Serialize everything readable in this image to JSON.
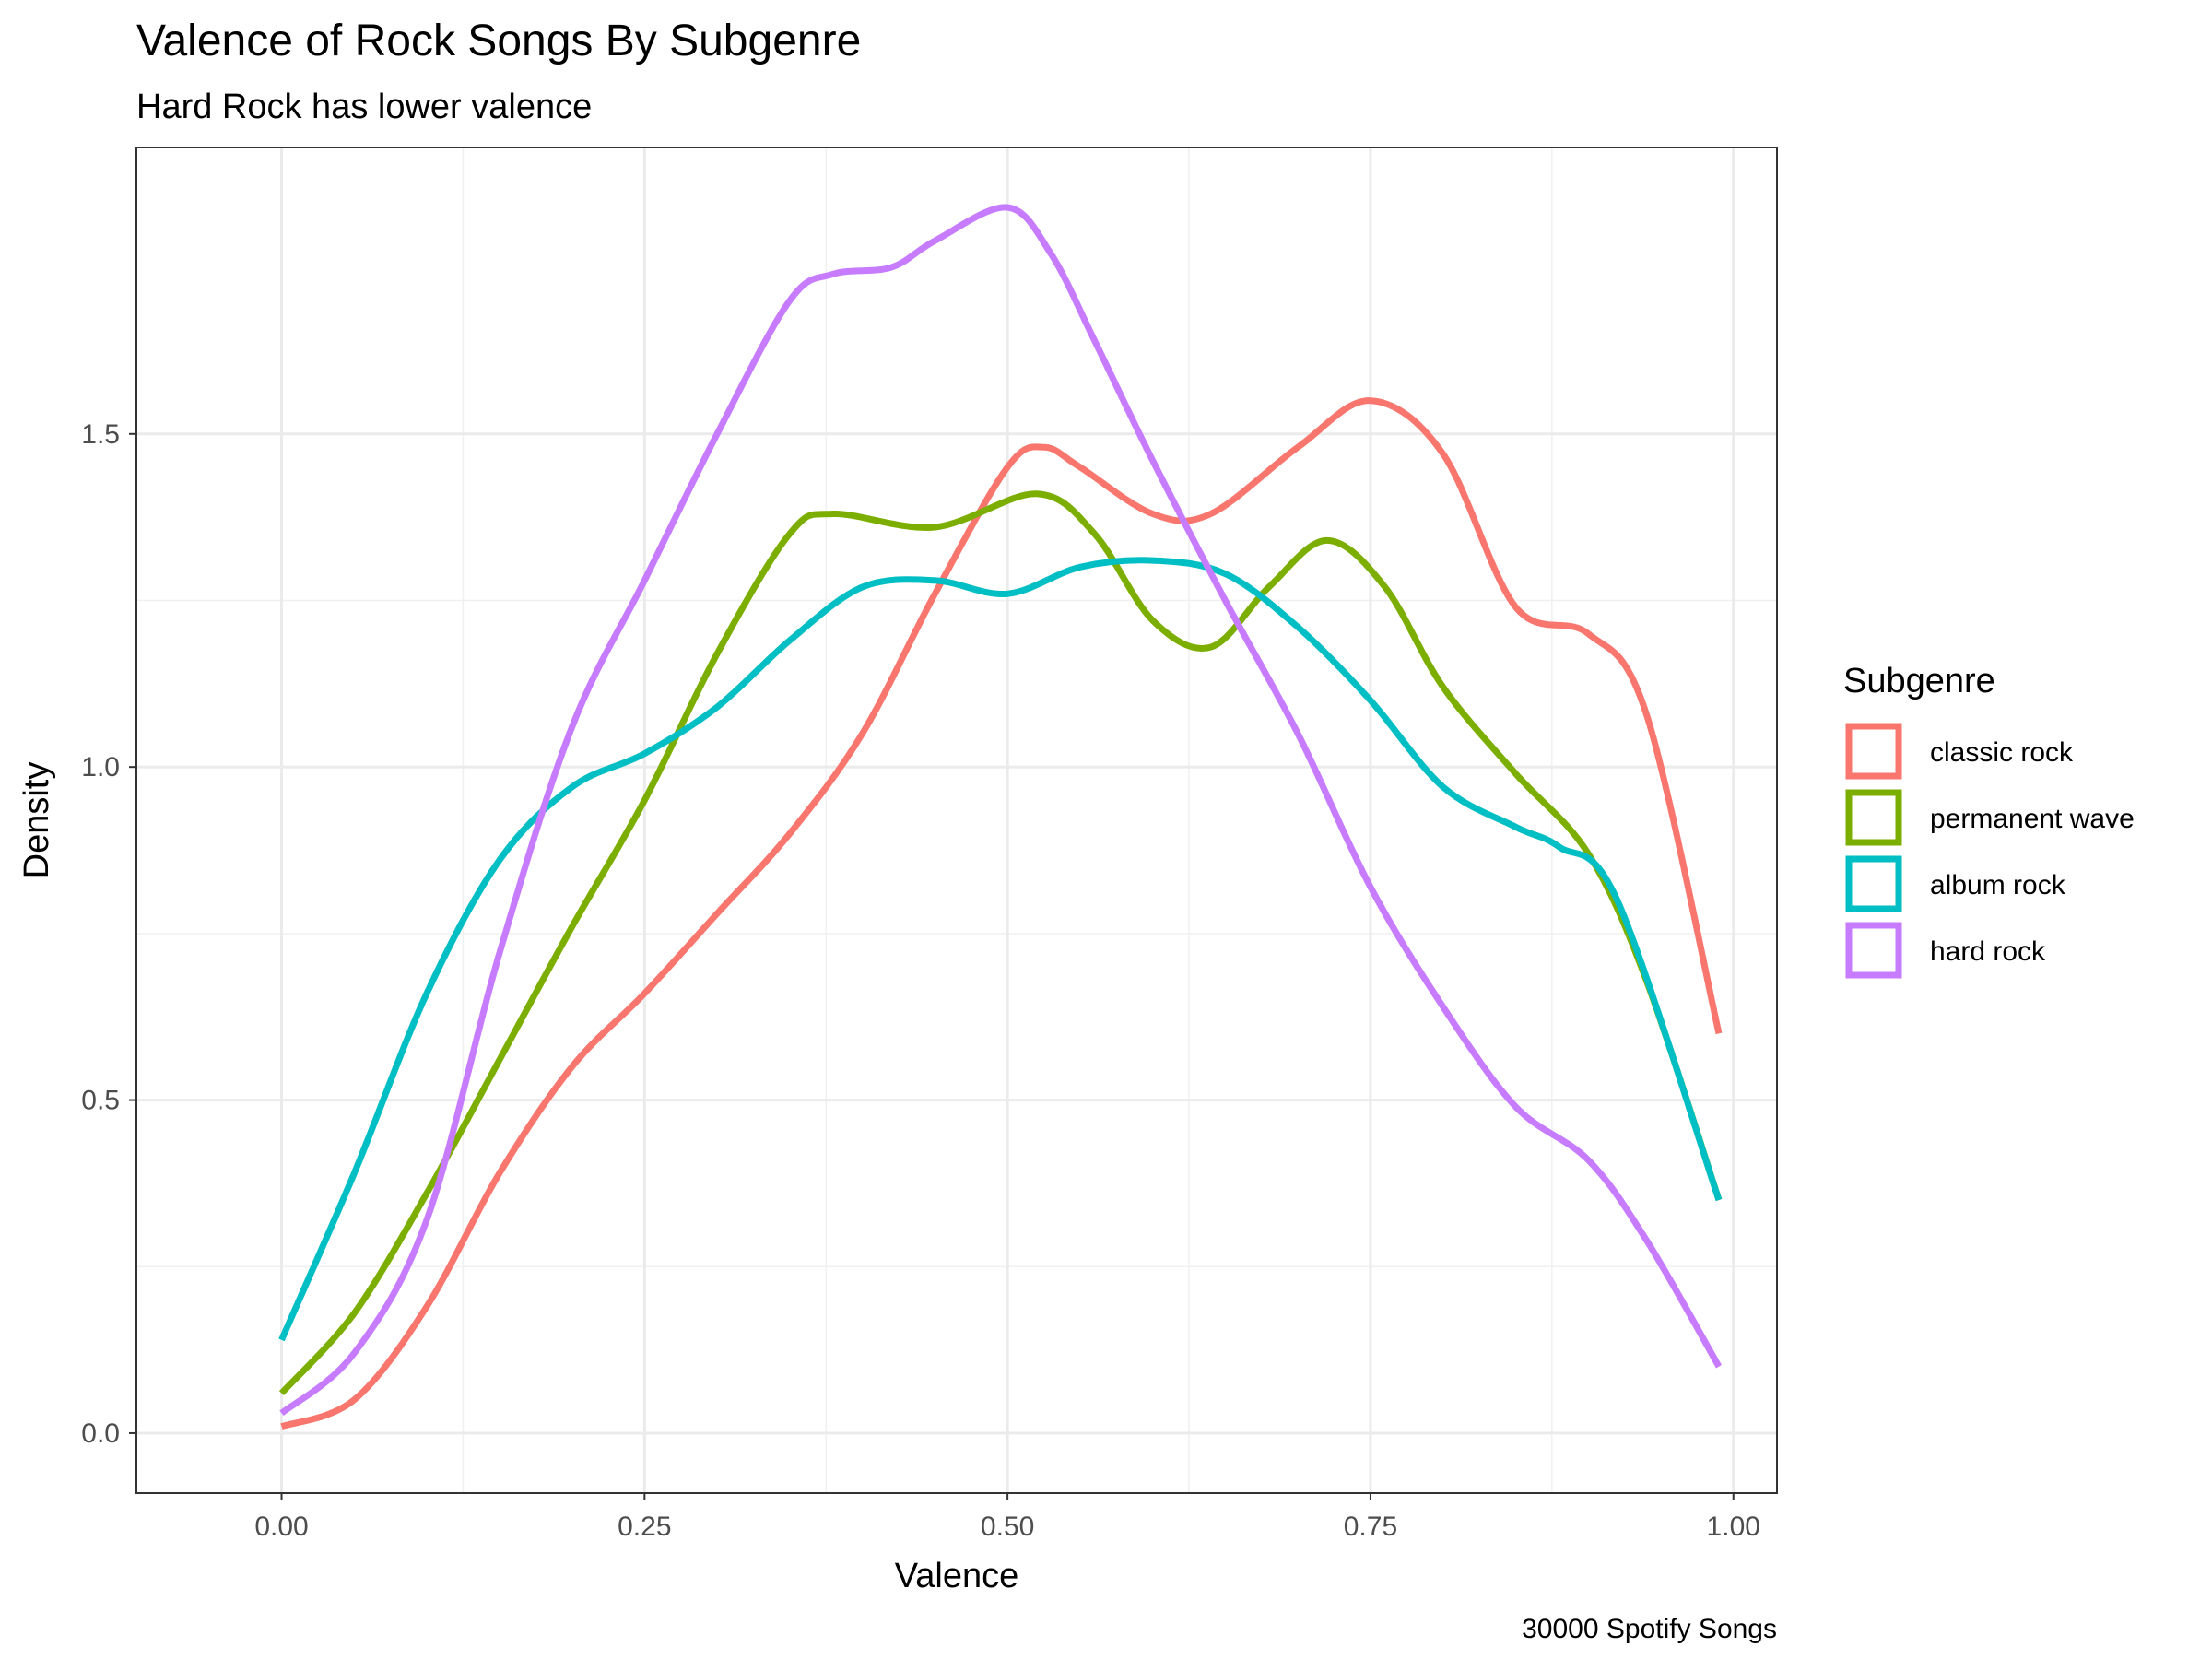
{
  "chart_data": {
    "type": "line",
    "title": "Valence of Rock Songs By Subgenre",
    "subtitle": "Hard Rock has lower valence",
    "xlabel": "Valence",
    "ylabel": "Density",
    "caption": "30000 Spotify Songs",
    "xlim": [
      -0.1,
      1.03
    ],
    "ylim": [
      -0.09,
      1.93
    ],
    "x_ticks": [
      0.0,
      0.25,
      0.5,
      0.75,
      1.0
    ],
    "x_tick_labels": [
      "0.00",
      "0.25",
      "0.50",
      "0.75",
      "1.00"
    ],
    "y_ticks": [
      0.0,
      0.5,
      1.0,
      1.5
    ],
    "y_tick_labels": [
      "0.0",
      "0.5",
      "1.0",
      "1.5"
    ],
    "grid": true,
    "legend": {
      "title": "Subgenre",
      "position": "right"
    },
    "series": [
      {
        "name": "classic rock",
        "color": "#F8766D",
        "x": [
          0.0,
          0.05,
          0.1,
          0.15,
          0.2,
          0.25,
          0.3,
          0.35,
          0.4,
          0.45,
          0.5,
          0.525,
          0.55,
          0.6,
          0.64,
          0.7,
          0.75,
          0.8,
          0.85,
          0.9,
          0.94,
          0.99
        ],
        "y": [
          0.01,
          0.05,
          0.19,
          0.39,
          0.55,
          0.66,
          0.78,
          0.9,
          1.05,
          1.26,
          1.45,
          1.48,
          1.45,
          1.38,
          1.38,
          1.48,
          1.55,
          1.47,
          1.24,
          1.2,
          1.08,
          0.6
        ]
      },
      {
        "name": "permanent wave",
        "color": "#7CAE00",
        "x": [
          0.0,
          0.05,
          0.1,
          0.15,
          0.2,
          0.25,
          0.3,
          0.35,
          0.38,
          0.45,
          0.52,
          0.56,
          0.6,
          0.64,
          0.68,
          0.72,
          0.76,
          0.8,
          0.85,
          0.9,
          0.94,
          0.99
        ],
        "y": [
          0.06,
          0.18,
          0.36,
          0.56,
          0.76,
          0.95,
          1.17,
          1.35,
          1.38,
          1.36,
          1.41,
          1.35,
          1.22,
          1.18,
          1.27,
          1.34,
          1.27,
          1.12,
          0.99,
          0.87,
          0.68,
          0.35
        ]
      },
      {
        "name": "album rock",
        "color": "#00BFC4",
        "x": [
          0.0,
          0.05,
          0.1,
          0.15,
          0.2,
          0.25,
          0.3,
          0.35,
          0.4,
          0.45,
          0.5,
          0.55,
          0.6,
          0.65,
          0.7,
          0.75,
          0.8,
          0.85,
          0.88,
          0.92,
          0.99
        ],
        "y": [
          0.14,
          0.39,
          0.66,
          0.86,
          0.97,
          1.02,
          1.09,
          1.19,
          1.27,
          1.28,
          1.26,
          1.3,
          1.31,
          1.29,
          1.21,
          1.1,
          0.97,
          0.91,
          0.88,
          0.8,
          0.35
        ]
      },
      {
        "name": "hard rock",
        "color": "#C77CFF",
        "x": [
          0.0,
          0.05,
          0.1,
          0.15,
          0.2,
          0.25,
          0.3,
          0.35,
          0.38,
          0.42,
          0.45,
          0.5,
          0.53,
          0.56,
          0.6,
          0.65,
          0.7,
          0.75,
          0.8,
          0.85,
          0.9,
          0.94,
          0.99
        ],
        "y": [
          0.03,
          0.12,
          0.32,
          0.72,
          1.06,
          1.28,
          1.5,
          1.7,
          1.74,
          1.75,
          1.79,
          1.84,
          1.77,
          1.64,
          1.46,
          1.25,
          1.05,
          0.82,
          0.64,
          0.49,
          0.41,
          0.29,
          0.1
        ]
      }
    ]
  }
}
